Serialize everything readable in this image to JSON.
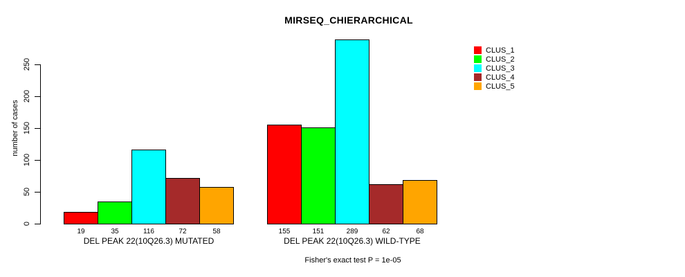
{
  "chart_data": {
    "type": "bar",
    "title": "MIRSEQ_CHIERARCHICAL",
    "ylabel": "number of cases",
    "xlabel": "",
    "annotation": "Fisher's exact test P = 1e-05",
    "categories": [
      "DEL PEAK 22(10Q26.3) MUTATED",
      "DEL PEAK 22(10Q26.3) WILD-TYPE"
    ],
    "series": [
      {
        "name": "CLUS_1",
        "color": "#ff0000",
        "values": [
          19,
          155
        ]
      },
      {
        "name": "CLUS_2",
        "color": "#00ff00",
        "values": [
          35,
          151
        ]
      },
      {
        "name": "CLUS_3",
        "color": "#00ffff",
        "values": [
          116,
          289
        ]
      },
      {
        "name": "CLUS_4",
        "color": "#a52a2a",
        "values": [
          72,
          62
        ]
      },
      {
        "name": "CLUS_5",
        "color": "#ffa500",
        "values": [
          58,
          68
        ]
      }
    ],
    "yticks": [
      0,
      50,
      100,
      150,
      200,
      250
    ],
    "ylim": [
      0,
      290
    ],
    "grid": false,
    "legend_position": "right",
    "bar_value_labels_shown": true,
    "bar_border_color": "#000000"
  }
}
